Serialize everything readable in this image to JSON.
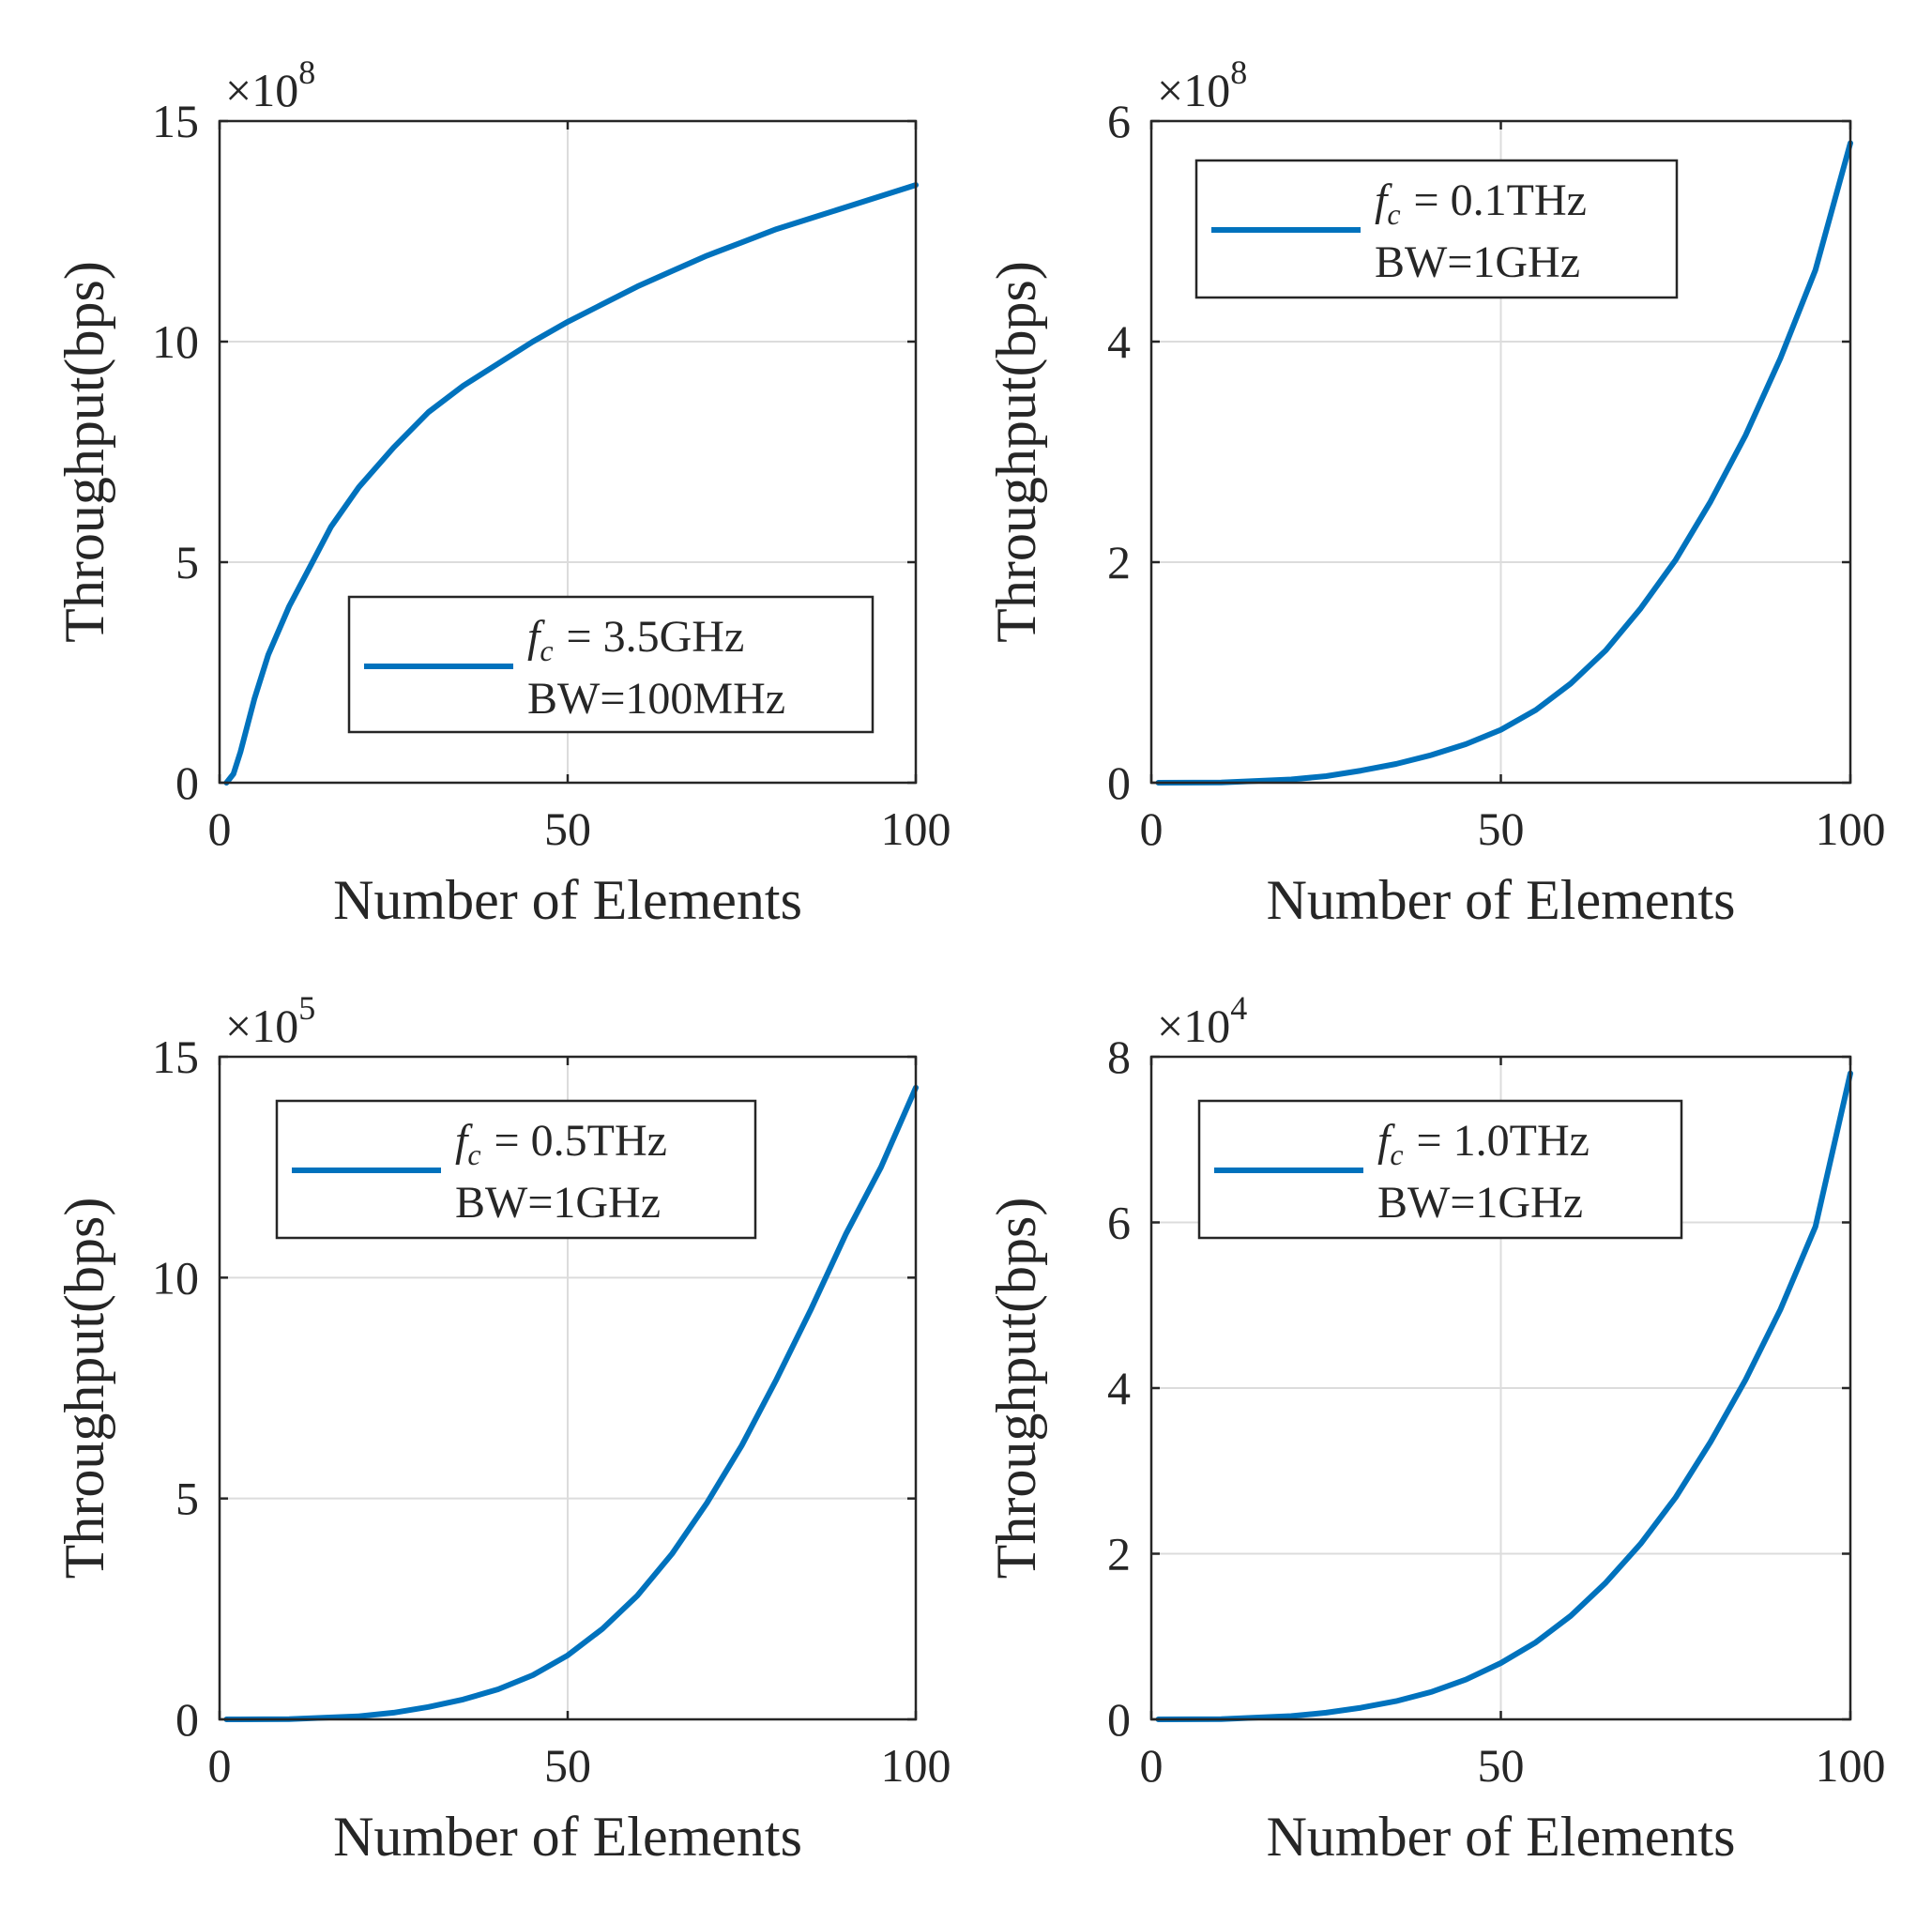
{
  "chart_data": [
    {
      "type": "line",
      "xlabel": "Number of Elements",
      "ylabel": "Throughput(bps)",
      "xlim": [
        0,
        100
      ],
      "ylim": [
        0,
        15
      ],
      "xticks": [
        0,
        50,
        100
      ],
      "yticks": [
        0,
        5,
        10,
        15
      ],
      "xtick_labels": [
        "0",
        "50",
        "100"
      ],
      "ytick_labels": [
        "0",
        "5",
        "10",
        "15"
      ],
      "exponent": {
        "prefix": "×10",
        "power": "8"
      },
      "grid": true,
      "legend_position": "lower-right",
      "color": "#0072BD",
      "series": [
        {
          "name": "f_c = 3.5GHz, BW=100MHz",
          "legend_line1": {
            "f": "f",
            "sub": "c",
            "rest": "= 3.5GHz"
          },
          "legend_line2": "BW=100MHz",
          "x": [
            1,
            2,
            3,
            4,
            5,
            7,
            10,
            13,
            16,
            20,
            25,
            30,
            35,
            40,
            45,
            50,
            55,
            60,
            65,
            70,
            75,
            80,
            85,
            90,
            95,
            100
          ],
          "y": [
            0,
            0.2,
            0.7,
            1.3,
            1.9,
            2.9,
            4.0,
            4.9,
            5.8,
            6.7,
            7.6,
            8.4,
            9.0,
            9.5,
            10.0,
            10.45,
            10.85,
            11.25,
            11.6,
            11.95,
            12.25,
            12.55,
            12.8,
            13.05,
            13.3,
            13.55
          ]
        }
      ]
    },
    {
      "type": "line",
      "xlabel": "Number of Elements",
      "ylabel": "Throughput(bps)",
      "xlim": [
        0,
        100
      ],
      "ylim": [
        0,
        6
      ],
      "xticks": [
        0,
        50,
        100
      ],
      "yticks": [
        0,
        2,
        4,
        6
      ],
      "xtick_labels": [
        "0",
        "50",
        "100"
      ],
      "ytick_labels": [
        "0",
        "2",
        "4",
        "6"
      ],
      "exponent": {
        "prefix": "×10",
        "power": "8"
      },
      "grid": true,
      "legend_position": "top-left",
      "color": "#0072BD",
      "series": [
        {
          "name": "f_c = 0.1THz, BW=1GHz",
          "legend_line1": {
            "f": "f",
            "sub": "c",
            "rest": "= 0.1THz"
          },
          "legend_line2": "BW=1GHz",
          "x": [
            1,
            10,
            20,
            25,
            30,
            35,
            40,
            45,
            50,
            55,
            60,
            65,
            70,
            75,
            80,
            85,
            90,
            95,
            100
          ],
          "y": [
            0,
            0.002,
            0.03,
            0.06,
            0.11,
            0.17,
            0.25,
            0.35,
            0.48,
            0.66,
            0.9,
            1.2,
            1.58,
            2.02,
            2.55,
            3.15,
            3.85,
            4.65,
            5.8
          ]
        }
      ]
    },
    {
      "type": "line",
      "xlabel": "Number of Elements",
      "ylabel": "Throughput(bps)",
      "xlim": [
        0,
        100
      ],
      "ylim": [
        0,
        15
      ],
      "xticks": [
        0,
        50,
        100
      ],
      "yticks": [
        0,
        5,
        10,
        15
      ],
      "xtick_labels": [
        "0",
        "50",
        "100"
      ],
      "ytick_labels": [
        "0",
        "5",
        "10",
        "15"
      ],
      "exponent": {
        "prefix": "×10",
        "power": "5"
      },
      "grid": true,
      "legend_position": "top-left",
      "color": "#0072BD",
      "series": [
        {
          "name": "f_c = 0.5THz, BW=1GHz",
          "legend_line1": {
            "f": "f",
            "sub": "c",
            "rest": "= 0.5THz"
          },
          "legend_line2": "BW=1GHz",
          "x": [
            1,
            10,
            20,
            25,
            30,
            35,
            40,
            45,
            50,
            55,
            60,
            65,
            70,
            75,
            80,
            85,
            90,
            95,
            100
          ],
          "y": [
            0,
            0.005,
            0.07,
            0.15,
            0.28,
            0.45,
            0.68,
            1.0,
            1.45,
            2.05,
            2.8,
            3.75,
            4.9,
            6.2,
            7.7,
            9.3,
            11.0,
            12.5,
            14.3
          ]
        }
      ]
    },
    {
      "type": "line",
      "xlabel": "Number of Elements",
      "ylabel": "Throughput(bps)",
      "xlim": [
        0,
        100
      ],
      "ylim": [
        0,
        8
      ],
      "xticks": [
        0,
        50,
        100
      ],
      "yticks": [
        0,
        2,
        4,
        6,
        8
      ],
      "xtick_labels": [
        "0",
        "50",
        "100"
      ],
      "ytick_labels": [
        "0",
        "2",
        "4",
        "6",
        "8"
      ],
      "exponent": {
        "prefix": "×10",
        "power": "4"
      },
      "grid": true,
      "legend_position": "top-left",
      "color": "#0072BD",
      "series": [
        {
          "name": "f_c = 1.0THz, BW=1GHz",
          "legend_line1": {
            "f": "f",
            "sub": "c",
            "rest": "= 1.0THz"
          },
          "legend_line2": "BW=1GHz",
          "x": [
            1,
            10,
            20,
            25,
            30,
            35,
            40,
            45,
            50,
            55,
            60,
            65,
            70,
            75,
            80,
            85,
            90,
            95,
            100
          ],
          "y": [
            0,
            0.003,
            0.04,
            0.08,
            0.14,
            0.22,
            0.33,
            0.48,
            0.68,
            0.93,
            1.25,
            1.65,
            2.12,
            2.68,
            3.35,
            4.1,
            4.95,
            5.95,
            7.8
          ]
        }
      ]
    }
  ]
}
